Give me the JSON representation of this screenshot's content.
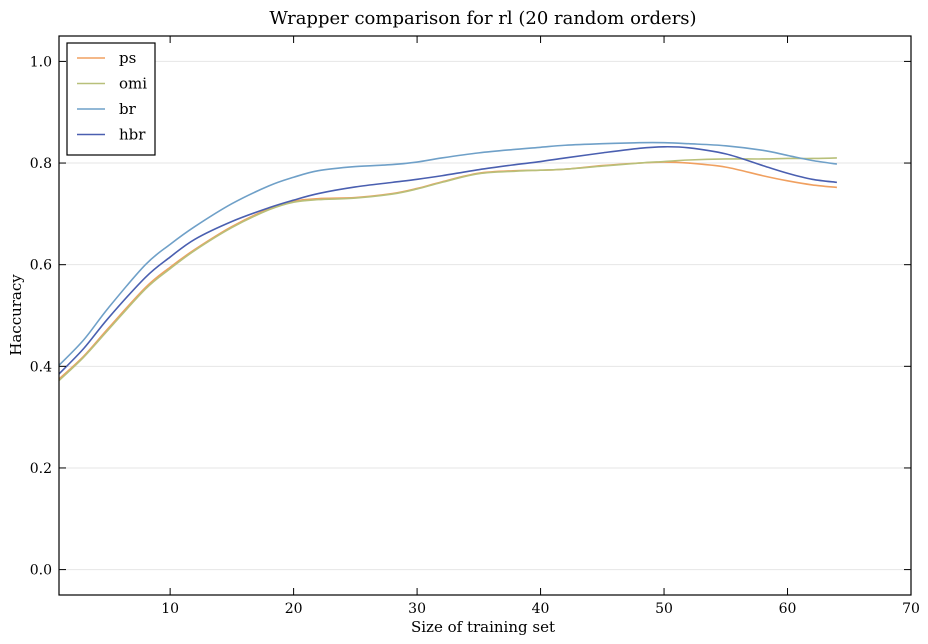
{
  "chart_data": {
    "type": "line",
    "title": "Wrapper comparison for rl (20 random orders)",
    "xlabel": "Size of training set",
    "ylabel": "Haccuracy",
    "xlim": [
      1,
      70
    ],
    "ylim": [
      -0.05,
      1.05
    ],
    "xticks": [
      10,
      20,
      30,
      40,
      50,
      60,
      70
    ],
    "yticks": [
      0.0,
      0.2,
      0.4,
      0.6,
      0.8,
      1.0
    ],
    "grid": "horizontal",
    "legend_position": "top-left",
    "x": [
      1,
      3,
      5,
      8,
      10,
      12,
      15,
      18,
      20,
      22,
      25,
      28,
      30,
      32,
      35,
      38,
      40,
      42,
      45,
      48,
      50,
      52,
      55,
      58,
      60,
      62,
      64
    ],
    "series": [
      {
        "name": "ps",
        "color": "#f0a060",
        "values": [
          0.375,
          0.42,
          0.475,
          0.555,
          0.595,
          0.63,
          0.675,
          0.71,
          0.725,
          0.73,
          0.732,
          0.74,
          0.75,
          0.763,
          0.78,
          0.785,
          0.786,
          0.788,
          0.795,
          0.8,
          0.802,
          0.8,
          0.792,
          0.775,
          0.765,
          0.757,
          0.752
        ]
      },
      {
        "name": "omi",
        "color": "#b8c07a",
        "values": [
          0.372,
          0.418,
          0.472,
          0.552,
          0.592,
          0.628,
          0.673,
          0.708,
          0.723,
          0.728,
          0.731,
          0.739,
          0.749,
          0.762,
          0.779,
          0.784,
          0.786,
          0.788,
          0.794,
          0.8,
          0.803,
          0.806,
          0.808,
          0.808,
          0.809,
          0.809,
          0.81
        ]
      },
      {
        "name": "br",
        "color": "#6fa0c8",
        "values": [
          0.402,
          0.452,
          0.515,
          0.6,
          0.64,
          0.675,
          0.72,
          0.755,
          0.772,
          0.785,
          0.793,
          0.797,
          0.802,
          0.81,
          0.82,
          0.827,
          0.831,
          0.835,
          0.838,
          0.84,
          0.84,
          0.838,
          0.834,
          0.825,
          0.815,
          0.805,
          0.798
        ]
      },
      {
        "name": "hbr",
        "color": "#4a5fb0",
        "values": [
          0.385,
          0.435,
          0.495,
          0.575,
          0.615,
          0.65,
          0.685,
          0.712,
          0.727,
          0.74,
          0.753,
          0.762,
          0.768,
          0.775,
          0.787,
          0.797,
          0.803,
          0.81,
          0.82,
          0.829,
          0.832,
          0.83,
          0.818,
          0.795,
          0.78,
          0.768,
          0.762
        ]
      }
    ]
  }
}
